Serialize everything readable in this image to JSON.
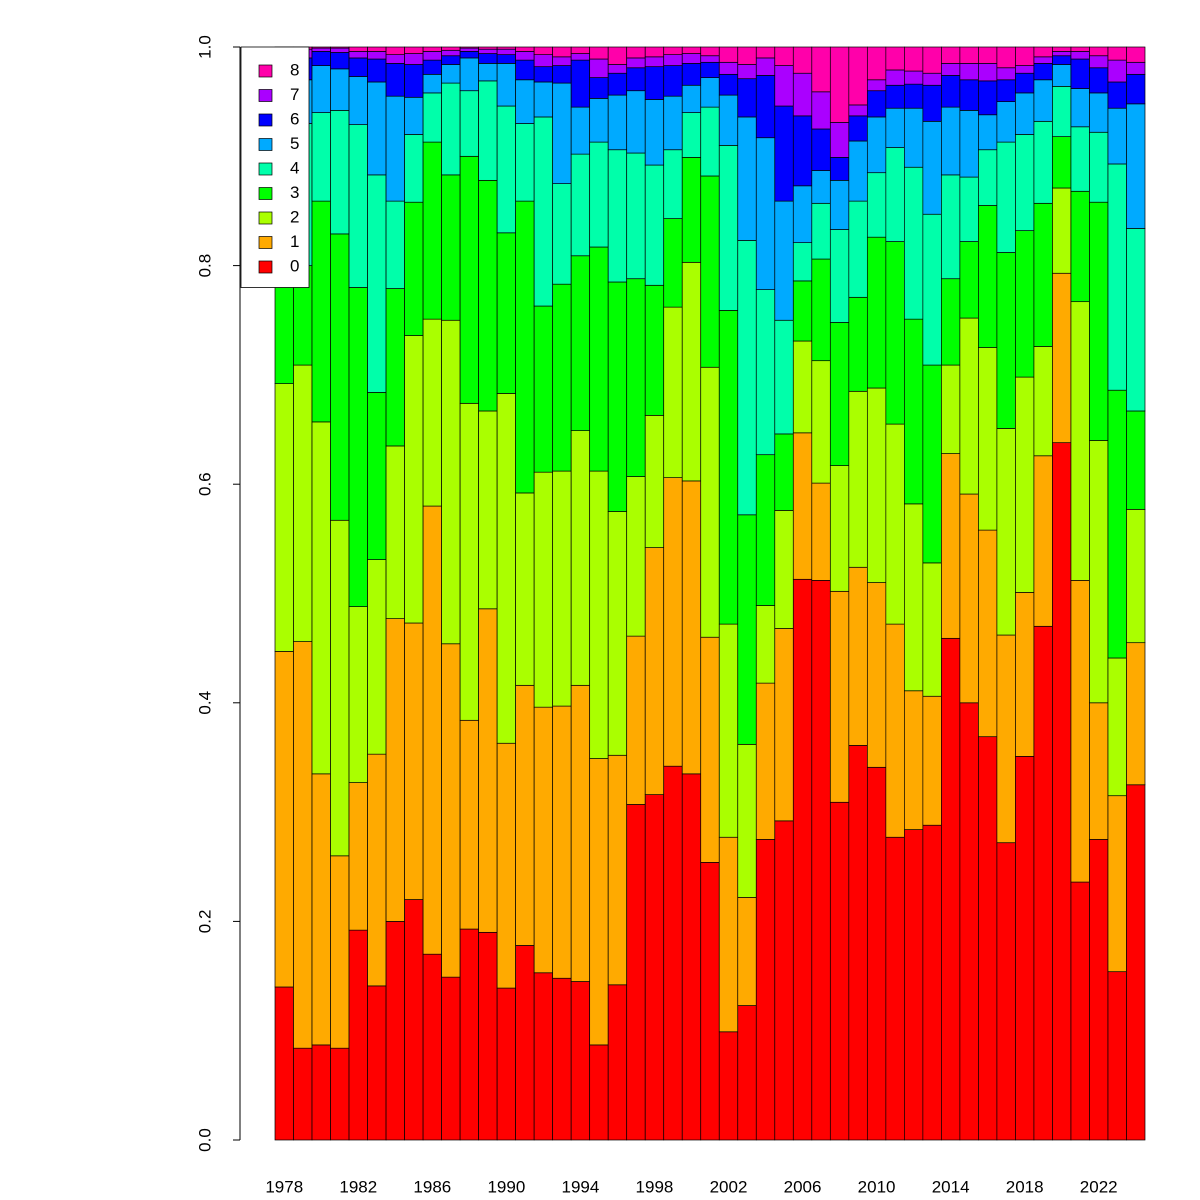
{
  "chart_data": {
    "type": "stacked_bar",
    "categories": [
      "1978",
      null,
      null,
      null,
      "1982",
      null,
      null,
      null,
      "1986",
      null,
      null,
      null,
      "1990",
      null,
      null,
      null,
      "1994",
      null,
      null,
      null,
      "1998",
      null,
      null,
      null,
      "2002",
      null,
      null,
      null,
      "2006",
      null,
      null,
      null,
      "2010",
      null,
      null,
      null,
      "2014",
      null,
      null,
      null,
      "2018",
      null,
      null,
      null,
      "2022",
      null,
      null
    ],
    "series": [
      {
        "name": "0",
        "color": "#ff0000",
        "values": [
          0.14,
          0.084,
          0.087,
          0.084,
          0.192,
          0.141,
          0.2,
          0.22,
          0.17,
          0.149,
          0.193,
          0.19,
          0.139,
          0.178,
          0.153,
          0.148,
          0.145,
          0.087,
          0.142,
          0.307,
          0.316,
          0.342,
          0.335,
          0.254,
          0.099,
          0.123,
          0.275,
          0.292,
          0.513,
          0.512,
          0.309,
          0.361,
          0.341,
          0.277,
          0.284,
          0.288,
          0.459,
          0.4,
          0.369,
          0.272,
          0.351,
          0.47,
          0.638,
          0.236,
          0.275,
          0.154,
          0.325
        ]
      },
      {
        "name": "1",
        "color": "#ffaa00",
        "values": [
          0.307,
          0.372,
          0.248,
          0.176,
          0.135,
          0.212,
          0.277,
          0.253,
          0.41,
          0.305,
          0.191,
          0.296,
          0.224,
          0.238,
          0.243,
          0.249,
          0.271,
          0.262,
          0.21,
          0.154,
          0.226,
          0.264,
          0.268,
          0.206,
          0.178,
          0.099,
          0.143,
          0.176,
          0.134,
          0.089,
          0.193,
          0.163,
          0.169,
          0.195,
          0.127,
          0.118,
          0.169,
          0.191,
          0.189,
          0.19,
          0.15,
          0.156,
          0.155,
          0.276,
          0.125,
          0.161,
          0.13
        ]
      },
      {
        "name": "2",
        "color": "#aaff00",
        "values": [
          0.245,
          0.253,
          0.322,
          0.307,
          0.161,
          0.178,
          0.158,
          0.263,
          0.171,
          0.296,
          0.29,
          0.181,
          0.32,
          0.176,
          0.215,
          0.215,
          0.233,
          0.263,
          0.223,
          0.146,
          0.121,
          0.156,
          0.2,
          0.247,
          0.195,
          0.14,
          0.071,
          0.108,
          0.084,
          0.112,
          0.115,
          0.161,
          0.178,
          0.183,
          0.171,
          0.122,
          0.081,
          0.161,
          0.167,
          0.189,
          0.197,
          0.1,
          0.078,
          0.255,
          0.24,
          0.126,
          0.122
        ]
      },
      {
        "name": "3",
        "color": "#00ff00",
        "values": [
          0.098,
          0.091,
          0.202,
          0.262,
          0.292,
          0.153,
          0.144,
          0.122,
          0.162,
          0.133,
          0.226,
          0.211,
          0.147,
          0.267,
          0.152,
          0.171,
          0.16,
          0.205,
          0.21,
          0.181,
          0.119,
          0.081,
          0.096,
          0.175,
          0.287,
          0.21,
          0.138,
          0.07,
          0.055,
          0.093,
          0.131,
          0.086,
          0.138,
          0.167,
          0.169,
          0.181,
          0.079,
          0.07,
          0.13,
          0.161,
          0.134,
          0.131,
          0.047,
          0.101,
          0.218,
          0.245,
          0.09
        ]
      },
      {
        "name": "4",
        "color": "#00ffaa",
        "values": [
          0.11,
          0.13,
          0.081,
          0.113,
          0.149,
          0.199,
          0.08,
          0.062,
          0.045,
          0.084,
          0.06,
          0.091,
          0.116,
          0.071,
          0.173,
          0.092,
          0.093,
          0.096,
          0.121,
          0.115,
          0.11,
          0.063,
          0.041,
          0.063,
          0.151,
          0.251,
          0.151,
          0.104,
          0.035,
          0.051,
          0.085,
          0.088,
          0.059,
          0.086,
          0.139,
          0.138,
          0.095,
          0.059,
          0.051,
          0.101,
          0.088,
          0.075,
          0.046,
          0.059,
          0.064,
          0.207,
          0.167
        ]
      },
      {
        "name": "5",
        "color": "#00aaff",
        "values": [
          0.06,
          0.04,
          0.043,
          0.038,
          0.044,
          0.085,
          0.096,
          0.034,
          0.017,
          0.017,
          0.03,
          0.016,
          0.039,
          0.04,
          0.032,
          0.092,
          0.043,
          0.04,
          0.05,
          0.057,
          0.06,
          0.049,
          0.025,
          0.027,
          0.046,
          0.113,
          0.139,
          0.109,
          0.052,
          0.03,
          0.045,
          0.055,
          0.051,
          0.036,
          0.054,
          0.085,
          0.062,
          0.061,
          0.032,
          0.037,
          0.038,
          0.038,
          0.02,
          0.035,
          0.036,
          0.051,
          0.114
        ]
      },
      {
        "name": "6",
        "color": "#0000ff",
        "values": [
          0.03,
          0.02,
          0.013,
          0.015,
          0.017,
          0.021,
          0.03,
          0.03,
          0.013,
          0.008,
          0.006,
          0.009,
          0.008,
          0.018,
          0.014,
          0.016,
          0.043,
          0.019,
          0.02,
          0.021,
          0.03,
          0.028,
          0.02,
          0.014,
          0.019,
          0.035,
          0.057,
          0.087,
          0.064,
          0.038,
          0.021,
          0.023,
          0.024,
          0.021,
          0.022,
          0.033,
          0.029,
          0.028,
          0.031,
          0.02,
          0.018,
          0.015,
          0.008,
          0.027,
          0.023,
          0.024,
          0.027
        ]
      },
      {
        "name": "7",
        "color": "#aa00ff",
        "values": [
          0.007,
          0.008,
          0.003,
          0.004,
          0.006,
          0.007,
          0.008,
          0.01,
          0.008,
          0.005,
          0.003,
          0.004,
          0.005,
          0.008,
          0.011,
          0.008,
          0.006,
          0.017,
          0.008,
          0.009,
          0.009,
          0.01,
          0.009,
          0.006,
          0.011,
          0.013,
          0.016,
          0.037,
          0.039,
          0.034,
          0.032,
          0.01,
          0.01,
          0.014,
          0.012,
          0.011,
          0.011,
          0.015,
          0.016,
          0.011,
          0.007,
          0.006,
          0.004,
          0.007,
          0.011,
          0.02,
          0.011
        ]
      },
      {
        "name": "8",
        "color": "#ff00aa",
        "values": [
          0.003,
          0.002,
          0.001,
          0.001,
          0.004,
          0.004,
          0.007,
          0.006,
          0.004,
          0.003,
          0.001,
          0.002,
          0.002,
          0.004,
          0.007,
          0.009,
          0.006,
          0.011,
          0.016,
          0.01,
          0.009,
          0.007,
          0.006,
          0.008,
          0.014,
          0.016,
          0.01,
          0.017,
          0.024,
          0.041,
          0.069,
          0.053,
          0.03,
          0.021,
          0.022,
          0.024,
          0.015,
          0.015,
          0.015,
          0.019,
          0.017,
          0.009,
          0.004,
          0.004,
          0.008,
          0.012,
          0.014
        ]
      }
    ],
    "ylim": [
      0,
      1
    ],
    "yticks": [
      {
        "value": 0,
        "label": "0.0"
      },
      0.2,
      0.4,
      0.6,
      0.8,
      {
        "value": 1,
        "label": "1.0"
      }
    ],
    "legend": "top-left"
  }
}
